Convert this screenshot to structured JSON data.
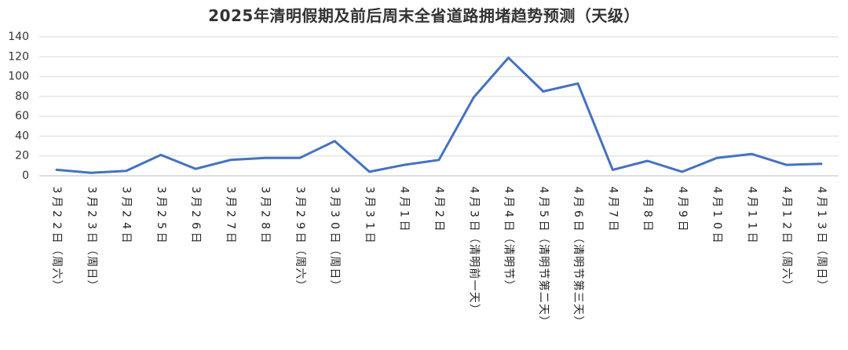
{
  "chart_data": {
    "type": "line",
    "title": "2025年清明假期及前后周末全省道路拥堵趋势预测（天级）",
    "xlabel": "",
    "ylabel": "",
    "ylim": [
      0,
      140
    ],
    "yticks": [
      0,
      20,
      40,
      60,
      80,
      100,
      120,
      140
    ],
    "grid": true,
    "legend": "none",
    "line_color": "#4472C4",
    "categories": [
      "3月22日（周六）",
      "3月23日（周日）",
      "3月24日",
      "3月25日",
      "3月26日",
      "3月27日",
      "3月28日",
      "3月29日（周六）",
      "3月30日（周日）",
      "3月31日",
      "4月1日",
      "4月2日",
      "4月3日（清明前一天）",
      "4月4日（清明节）",
      "4月5日（清明节第二天）",
      "4月6日（清明节第三天）",
      "4月7日",
      "4月8日",
      "4月9日",
      "4月10日",
      "4月11日",
      "4月12日（周六）",
      "4月13日（周日）"
    ],
    "series": [
      {
        "values": [
          6,
          3,
          5,
          21,
          7,
          16,
          18,
          18,
          35,
          4,
          11,
          16,
          79,
          119,
          85,
          93,
          6,
          15,
          4,
          18,
          22,
          11,
          12
        ]
      }
    ]
  }
}
